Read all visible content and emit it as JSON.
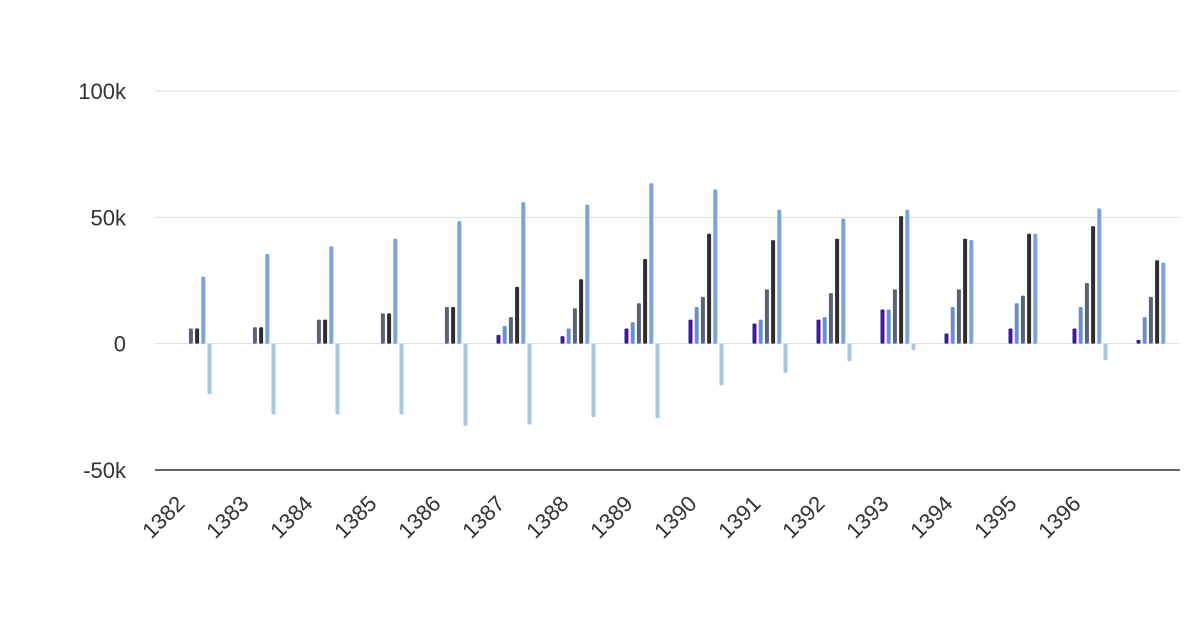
{
  "chart_data": {
    "type": "bar",
    "title": "",
    "xlabel": "",
    "ylabel": "",
    "ylim": [
      -50000,
      100000
    ],
    "yticks": [
      {
        "value": 100000,
        "label": "100k"
      },
      {
        "value": 50000,
        "label": "50k"
      },
      {
        "value": 0,
        "label": "0"
      },
      {
        "value": -50000,
        "label": "-50k"
      }
    ],
    "grid": true,
    "legend": "none",
    "categories": [
      "1382",
      "1383",
      "1384",
      "1385",
      "1386",
      "1387",
      "1388",
      "1389",
      "1390",
      "1391",
      "1392",
      "1393",
      "1394",
      "1395",
      "1396",
      ""
    ],
    "series": [
      {
        "color": "#3b1a9e",
        "values": [
          0,
          0,
          0,
          0,
          0,
          3500,
          3000,
          6000,
          9500,
          8000,
          9500,
          13500,
          4000,
          6000,
          6000,
          1500
        ]
      },
      {
        "color": "#6a8fca",
        "values": [
          0,
          0,
          0,
          0,
          0,
          7000,
          6000,
          8500,
          14500,
          9500,
          10500,
          13500,
          14500,
          16000,
          14500,
          10500
        ]
      },
      {
        "color": "#5a6470",
        "values": [
          6000,
          6500,
          9500,
          12000,
          14500,
          10500,
          14000,
          16000,
          18500,
          21500,
          20000,
          21500,
          21500,
          19000,
          24000,
          18500
        ]
      },
      {
        "color": "#262e38",
        "values": [
          6000,
          6500,
          9500,
          12000,
          14500,
          22500,
          25500,
          33500,
          43500,
          41000,
          41500,
          50500,
          41500,
          43500,
          46500,
          33000
        ]
      },
      {
        "color": "#7aa3d4",
        "values": [
          26500,
          35500,
          38500,
          41500,
          48500,
          56000,
          55000,
          63500,
          61000,
          53000,
          49500,
          53000,
          41000,
          43500,
          53500,
          32000
        ]
      },
      {
        "color": "#aac6e2",
        "values": [
          -20000,
          -28000,
          -28000,
          -28000,
          -32500,
          -32000,
          -29000,
          -29500,
          -16500,
          -11500,
          -7000,
          -2500,
          0,
          0,
          -6500,
          0
        ]
      }
    ]
  }
}
